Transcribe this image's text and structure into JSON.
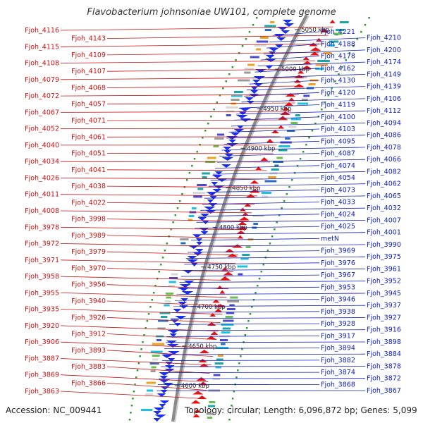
{
  "title": "Flavobacterium johnsoniae UW101, complete genome",
  "accession": "Accession: NC_009441",
  "topology": "Topology: circular; Length: 6,096,872 bp; Genes: 5,099",
  "colors": {
    "forward_gene": "#e81010",
    "reverse_gene": "#1a2ef0",
    "backbone": "#8a8a8a",
    "dots": "#2e9a2e"
  },
  "position_markers": [
    "5050 kbp",
    "5000 kbp",
    "4950 kbp",
    "4900 kbp",
    "4850 kbp",
    "4800 kbp",
    "4750 kbp",
    "4700 kbp",
    "4650 kbp",
    "4600 kbp"
  ],
  "forward_labels": [
    "Fjoh_4116",
    "Fjoh_4143",
    "Fjoh_4115",
    "Fjoh_4109",
    "Fjoh_4108",
    "Fjoh_4107",
    "Fjoh_4079",
    "Fjoh_4068",
    "Fjoh_4072",
    "Fjoh_4057",
    "Fjoh_4067",
    "Fjoh_4071",
    "Fjoh_4052",
    "Fjoh_4061",
    "Fjoh_4040",
    "Fjoh_4051",
    "Fjoh_4034",
    "Fjoh_4041",
    "Fjoh_4026",
    "Fjoh_4038",
    "Fjoh_4011",
    "Fjoh_4022",
    "Fjoh_4008",
    "Fjoh_3998",
    "Fjoh_3978",
    "Fjoh_3989",
    "Fjoh_3972",
    "Fjoh_3979",
    "Fjoh_3971",
    "Fjoh_3970",
    "Fjoh_3958",
    "Fjoh_3956",
    "Fjoh_3955",
    "Fjoh_3940",
    "Fjoh_3935",
    "Fjoh_3926",
    "Fjoh_3920",
    "Fjoh_3912",
    "Fjoh_3906",
    "Fjoh_3893",
    "Fjoh_3887",
    "Fjoh_3883",
    "Fjoh_3869",
    "Fjoh_3866",
    "Fjoh_3863"
  ],
  "reverse_labels": [
    "Fjoh_4221",
    "Fjoh_4210",
    "Fjoh_4188",
    "Fjoh_4200",
    "Fjoh_4178",
    "Fjoh_4174",
    "Fjoh_4162",
    "Fjoh_4149",
    "Fjoh_4130",
    "Fjoh_4139",
    "Fjoh_4120",
    "Fjoh_4106",
    "Fjoh_4119",
    "Fjoh_4112",
    "Fjoh_4100",
    "Fjoh_4094",
    "Fjoh_4103",
    "Fjoh_4086",
    "Fjoh_4095",
    "Fjoh_4078",
    "Fjoh_4087",
    "Fjoh_4066",
    "Fjoh_4074",
    "Fjoh_4082",
    "Fjoh_4054",
    "Fjoh_4062",
    "Fjoh_4073",
    "Fjoh_4065",
    "Fjoh_4033",
    "Fjoh_4032",
    "Fjoh_4024",
    "Fjoh_4007",
    "Fjoh_4025",
    "Fjoh_4001",
    "metN",
    "Fjoh_3990",
    "Fjoh_3969",
    "Fjoh_3975",
    "Fjoh_3976",
    "Fjoh_3961",
    "Fjoh_3967",
    "Fjoh_3952",
    "Fjoh_3953",
    "Fjoh_3945",
    "Fjoh_3946",
    "Fjoh_3937",
    "Fjoh_3938",
    "Fjoh_3927",
    "Fjoh_3928",
    "Fjoh_3916",
    "Fjoh_3917",
    "Fjoh_3898",
    "Fjoh_3894",
    "Fjoh_3884",
    "Fjoh_3882",
    "Fjoh_3878",
    "Fjoh_3874",
    "Fjoh_3872",
    "Fjoh_3868",
    "Fjoh_3867"
  ]
}
